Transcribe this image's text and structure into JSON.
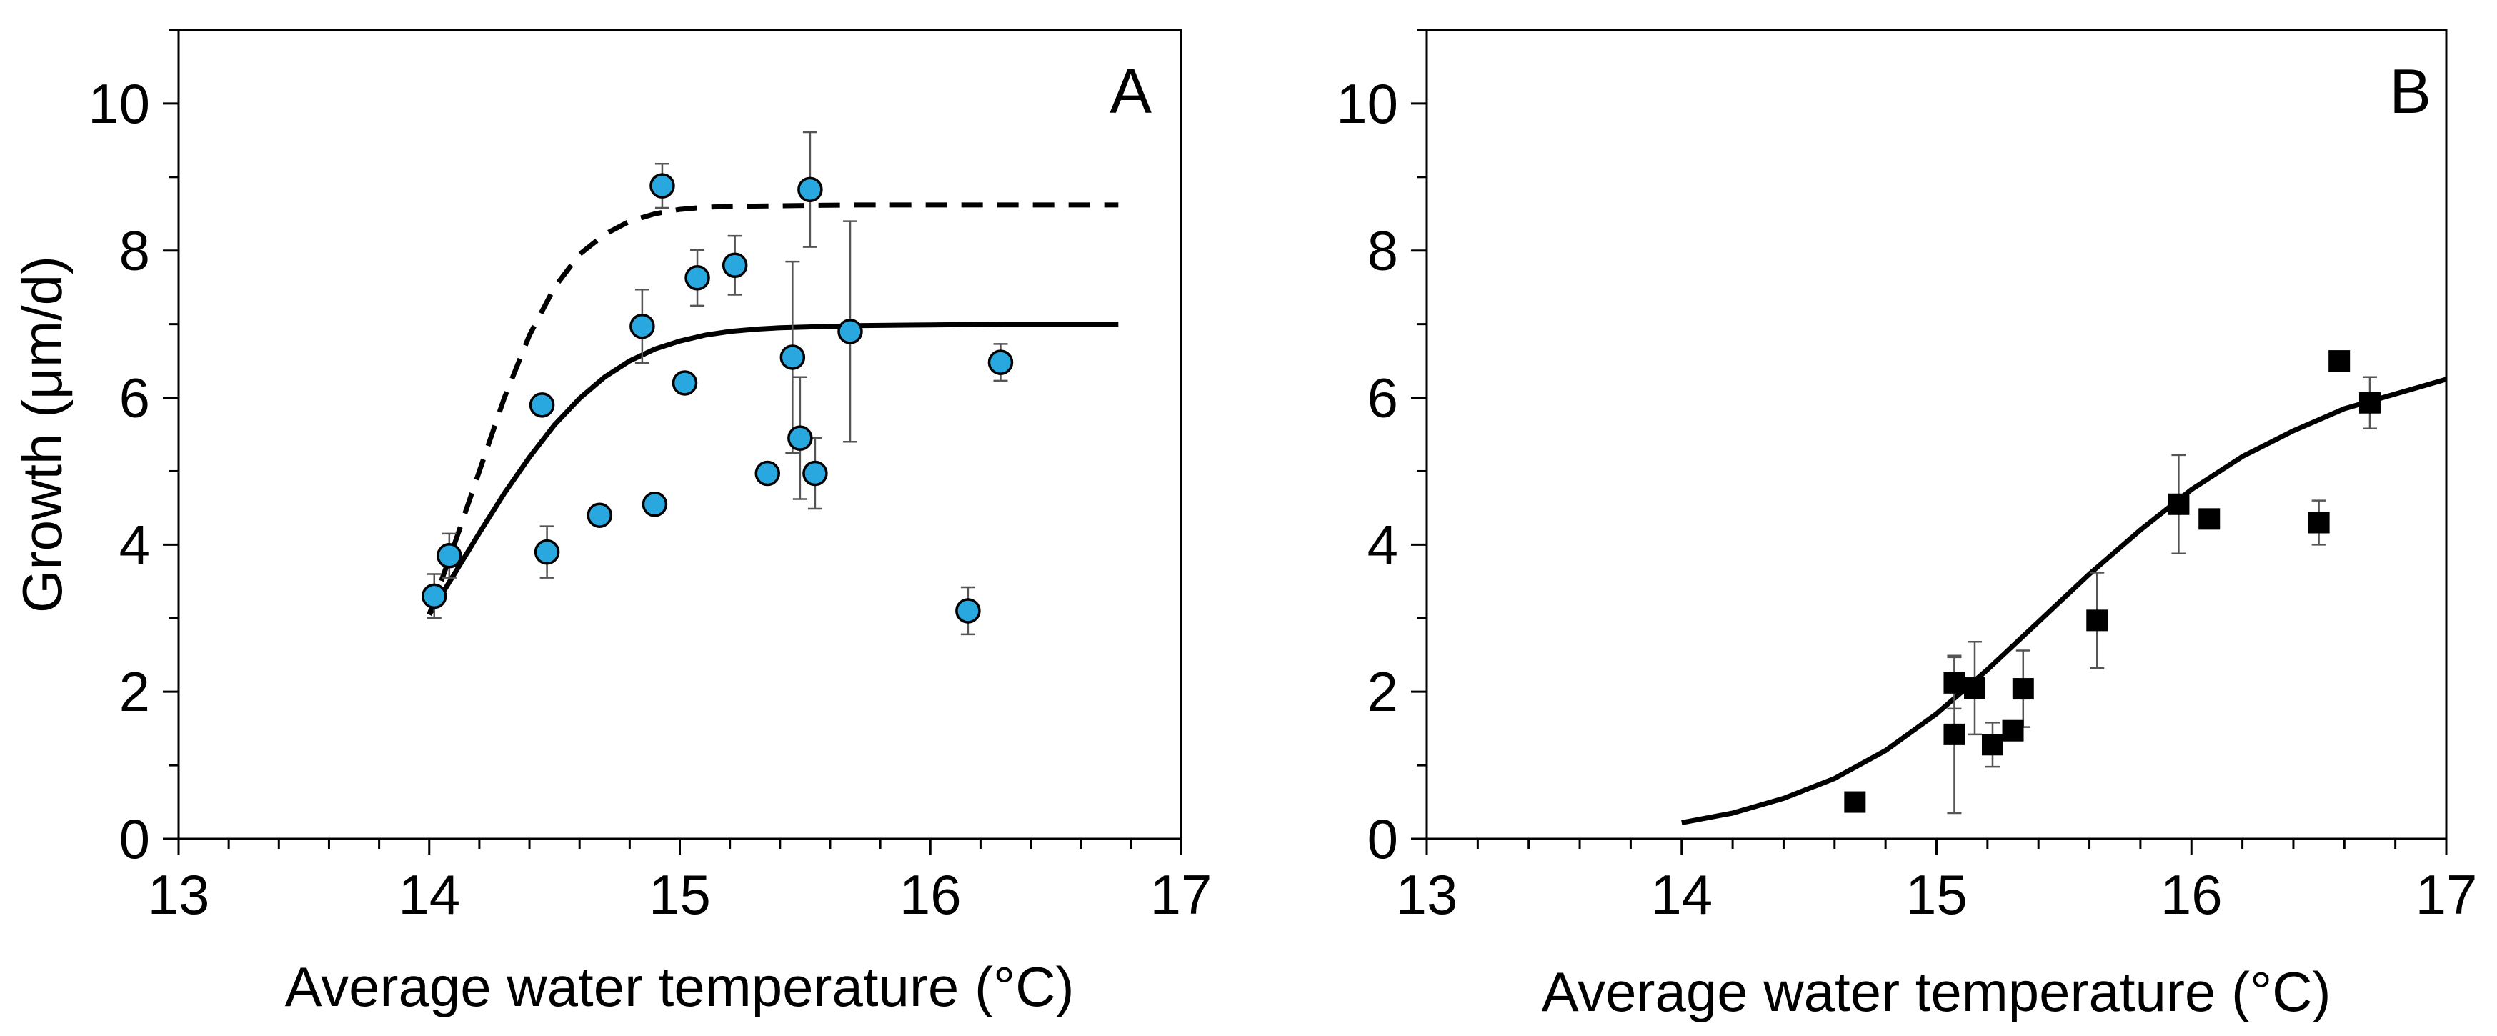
{
  "chart_data": [
    {
      "type": "scatter",
      "panel_label": "A",
      "xlabel": "Average water temperature (°C)",
      "ylabel": "Growth (μm/d)",
      "xlim": [
        13,
        17
      ],
      "ylim": [
        0,
        11
      ],
      "xticks": [
        13,
        14,
        15,
        16,
        17
      ],
      "yticks": [
        0,
        2,
        4,
        6,
        8,
        10
      ],
      "marker": "circle",
      "marker_color": "#29a8e0",
      "series": [
        {
          "points": [
            {
              "x": 14.02,
              "y": 3.3,
              "err": 0.3
            },
            {
              "x": 14.08,
              "y": 3.85,
              "err": 0.3
            },
            {
              "x": 14.45,
              "y": 5.9,
              "err": 0
            },
            {
              "x": 14.47,
              "y": 3.9,
              "err": 0.35
            },
            {
              "x": 14.68,
              "y": 4.4,
              "err": 0
            },
            {
              "x": 14.85,
              "y": 6.97,
              "err": 0.5
            },
            {
              "x": 14.9,
              "y": 4.55,
              "err": 0
            },
            {
              "x": 14.93,
              "y": 8.88,
              "err": 0.3
            },
            {
              "x": 15.02,
              "y": 6.2,
              "err": 0
            },
            {
              "x": 15.07,
              "y": 7.63,
              "err": 0.38
            },
            {
              "x": 15.22,
              "y": 7.8,
              "err": 0.4
            },
            {
              "x": 15.35,
              "y": 4.97,
              "err": 0
            },
            {
              "x": 15.45,
              "y": 6.55,
              "err": 1.3
            },
            {
              "x": 15.48,
              "y": 5.45,
              "err": 0.83
            },
            {
              "x": 15.52,
              "y": 8.83,
              "err": 0.78
            },
            {
              "x": 15.54,
              "y": 4.97,
              "err": 0.48
            },
            {
              "x": 15.68,
              "y": 6.9,
              "err": 1.5
            },
            {
              "x": 16.15,
              "y": 3.1,
              "err": 0.32
            },
            {
              "x": 16.28,
              "y": 6.48,
              "err": 0.25
            }
          ]
        }
      ],
      "fit_curves": [
        {
          "style": "solid",
          "points": [
            [
              14.0,
              3.05
            ],
            [
              14.1,
              3.6
            ],
            [
              14.2,
              4.16
            ],
            [
              14.3,
              4.7
            ],
            [
              14.4,
              5.19
            ],
            [
              14.5,
              5.63
            ],
            [
              14.6,
              5.99
            ],
            [
              14.7,
              6.28
            ],
            [
              14.8,
              6.5
            ],
            [
              14.9,
              6.66
            ],
            [
              15.0,
              6.77
            ],
            [
              15.1,
              6.85
            ],
            [
              15.2,
              6.9
            ],
            [
              15.3,
              6.93
            ],
            [
              15.4,
              6.95
            ],
            [
              15.5,
              6.96
            ],
            [
              15.7,
              6.98
            ],
            [
              16.0,
              6.99
            ],
            [
              16.3,
              7.0
            ],
            [
              16.75,
              7.0
            ]
          ]
        },
        {
          "style": "dashed",
          "points": [
            [
              14.0,
              3.05
            ],
            [
              14.1,
              4.0
            ],
            [
              14.2,
              5.0
            ],
            [
              14.3,
              6.0
            ],
            [
              14.4,
              6.85
            ],
            [
              14.5,
              7.5
            ],
            [
              14.6,
              7.95
            ],
            [
              14.7,
              8.22
            ],
            [
              14.8,
              8.4
            ],
            [
              14.9,
              8.5
            ],
            [
              15.0,
              8.56
            ],
            [
              15.1,
              8.59
            ],
            [
              15.2,
              8.6
            ],
            [
              15.4,
              8.61
            ],
            [
              15.7,
              8.62
            ],
            [
              16.0,
              8.62
            ],
            [
              16.4,
              8.62
            ],
            [
              16.75,
              8.62
            ]
          ]
        }
      ]
    },
    {
      "type": "scatter",
      "panel_label": "B",
      "xlabel": "Average water temperature (°C)",
      "ylabel": "",
      "xlim": [
        13,
        17
      ],
      "ylim": [
        0,
        11
      ],
      "xticks": [
        13,
        14,
        15,
        16,
        17
      ],
      "yticks": [
        0,
        2,
        4,
        6,
        8,
        10
      ],
      "marker": "square",
      "marker_color": "#000000",
      "series": [
        {
          "points": [
            {
              "x": 14.68,
              "y": 0.5,
              "err": 0
            },
            {
              "x": 15.07,
              "y": 2.12,
              "err": 0.35
            },
            {
              "x": 15.07,
              "y": 1.42,
              "err": 1.07
            },
            {
              "x": 15.15,
              "y": 2.05,
              "err": 0.63
            },
            {
              "x": 15.22,
              "y": 1.28,
              "err": 0.3
            },
            {
              "x": 15.3,
              "y": 1.47,
              "err": 0
            },
            {
              "x": 15.34,
              "y": 2.04,
              "err": 0.52
            },
            {
              "x": 15.63,
              "y": 2.97,
              "err": 0.65
            },
            {
              "x": 15.95,
              "y": 4.55,
              "err": 0.67
            },
            {
              "x": 16.07,
              "y": 4.35,
              "err": 0.12
            },
            {
              "x": 16.5,
              "y": 4.3,
              "err": 0.3
            },
            {
              "x": 16.58,
              "y": 6.5,
              "err": 0
            },
            {
              "x": 16.7,
              "y": 5.93,
              "err": 0.35
            }
          ]
        }
      ],
      "fit_curves": [
        {
          "style": "solid",
          "points": [
            [
              14.0,
              0.22
            ],
            [
              14.2,
              0.35
            ],
            [
              14.4,
              0.55
            ],
            [
              14.6,
              0.82
            ],
            [
              14.8,
              1.2
            ],
            [
              15.0,
              1.7
            ],
            [
              15.2,
              2.3
            ],
            [
              15.4,
              2.95
            ],
            [
              15.6,
              3.6
            ],
            [
              15.8,
              4.2
            ],
            [
              16.0,
              4.75
            ],
            [
              16.2,
              5.2
            ],
            [
              16.4,
              5.55
            ],
            [
              16.6,
              5.85
            ],
            [
              16.8,
              6.05
            ],
            [
              17.0,
              6.25
            ]
          ]
        }
      ]
    }
  ]
}
